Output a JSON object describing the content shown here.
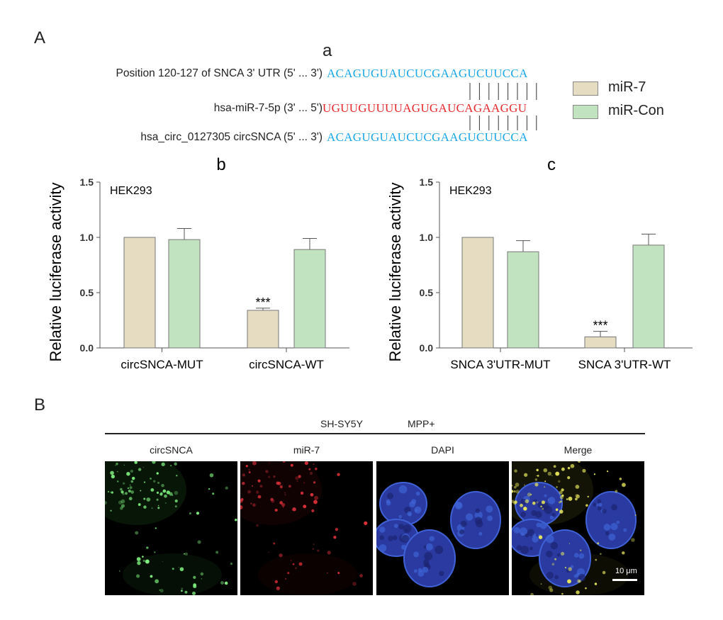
{
  "panel_A": "A",
  "panel_B": "B",
  "subpanel_a": "a",
  "sequences": [
    {
      "label": "Position 120-127 of SNCA 3' UTR (5' ... 3')",
      "seq": "ACAGUGUAUCUCGAAGUCUUCCA",
      "color": "#1aa7e6"
    },
    {
      "label": "hsa-miR-7-5p (3' ... 5')",
      "seq": "UGUUGUUUUAGUGAUCAGAAGGU",
      "color": "#e8282a"
    },
    {
      "label": "hsa_circ_0127305 circSNCA (5' ... 3')",
      "seq": "ACAGUGUAUCUCGAAGUCUUCCA",
      "color": "#1aa7e6"
    }
  ],
  "legend": [
    {
      "name": "miR-7",
      "color": "#e5dcc2"
    },
    {
      "name": "miR-Con",
      "color": "#c2e3bf"
    }
  ],
  "chart_data": [
    {
      "type": "bar",
      "panel": "b",
      "annotation": "HEK293",
      "ylabel": "Relative luciferase activity",
      "ylim": [
        0,
        1.5
      ],
      "yticks": [
        "0.0",
        "0.5",
        "1.0",
        "1.5"
      ],
      "categories": [
        "circSNCA-MUT",
        "circSNCA-WT"
      ],
      "series": [
        {
          "name": "miR-7",
          "values": [
            1.0,
            0.34
          ],
          "errors": [
            0,
            0.02
          ]
        },
        {
          "name": "miR-Con",
          "values": [
            0.98,
            0.89
          ],
          "errors": [
            0.1,
            0.1
          ]
        }
      ],
      "significance": [
        {
          "category": "circSNCA-WT",
          "series": "miR-7",
          "label": "***"
        }
      ]
    },
    {
      "type": "bar",
      "panel": "c",
      "annotation": "HEK293",
      "ylabel": "Relative luciferase activity",
      "ylim": [
        0,
        1.5
      ],
      "yticks": [
        "0.0",
        "0.5",
        "1.0",
        "1.5"
      ],
      "categories": [
        "SNCA 3'UTR-MUT",
        "SNCA 3'UTR-WT"
      ],
      "series": [
        {
          "name": "miR-7",
          "values": [
            1.0,
            0.1
          ],
          "errors": [
            0,
            0.05
          ]
        },
        {
          "name": "miR-Con",
          "values": [
            0.87,
            0.93
          ],
          "errors": [
            0.1,
            0.1
          ]
        }
      ],
      "significance": [
        {
          "category": "SNCA 3'UTR-WT",
          "series": "miR-7",
          "label": "***"
        }
      ]
    }
  ],
  "imaging": {
    "cell_line": "SH-SY5Y",
    "treatment": "MPP+",
    "columns": [
      "circSNCA",
      "miR-7",
      "DAPI",
      "Merge"
    ],
    "scale_bar": "10 μm"
  }
}
